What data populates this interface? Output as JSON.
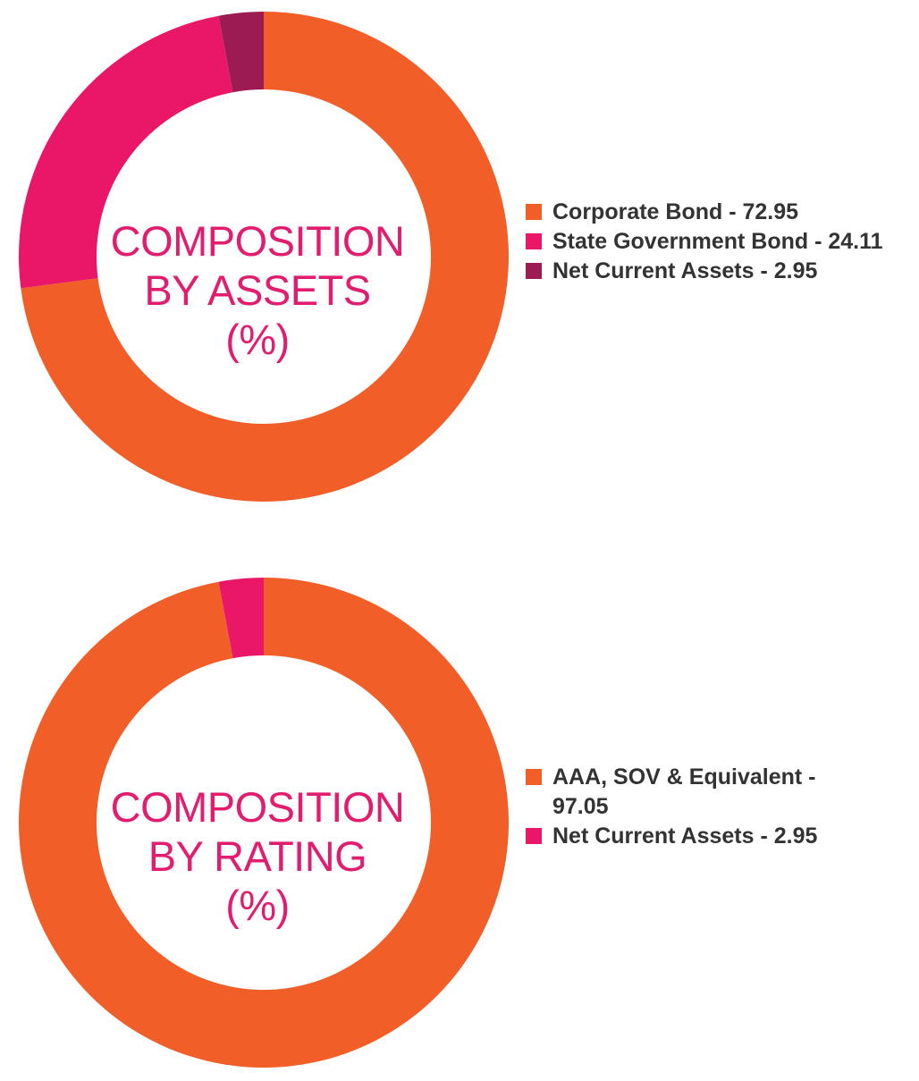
{
  "chart_data": [
    {
      "type": "pie",
      "variant": "donut",
      "center_title": [
        "COMPOSITION",
        "BY ASSETS",
        "(%)"
      ],
      "legend_position": "right",
      "slices": [
        {
          "label": "Corporate Bond - 72.95",
          "value": 72.95,
          "color": "#f15e28"
        },
        {
          "label": "State Government Bond - 24.11",
          "value": 24.11,
          "color": "#ea1768"
        },
        {
          "label": "Net Current Assets - 2.95",
          "value": 2.95,
          "color": "#9b1b52"
        }
      ]
    },
    {
      "type": "pie",
      "variant": "donut",
      "center_title": [
        "COMPOSITION",
        "BY RATING",
        "(%)"
      ],
      "legend_position": "right",
      "slices": [
        {
          "label": "AAA, SOV & Equivalent - 97.05",
          "value": 97.05,
          "color": "#f15e28"
        },
        {
          "label": "Net Current Assets - 2.95",
          "value": 2.95,
          "color": "#ea1768"
        }
      ]
    }
  ]
}
